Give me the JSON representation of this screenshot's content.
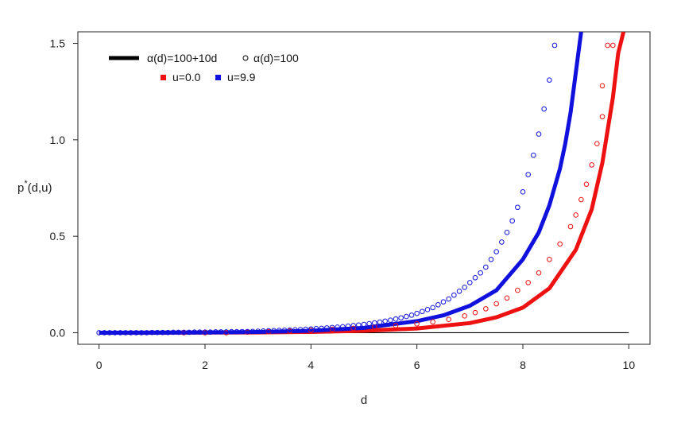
{
  "chart_data": {
    "type": "line",
    "xlabel": "d",
    "ylabel": "p*(d,u)",
    "ylabel_parts": {
      "base": "p",
      "sup": "*",
      "args": "(d,u)"
    },
    "xlim": [
      -0.4,
      10.4
    ],
    "ylim": [
      -0.06,
      1.56
    ],
    "x_ticks": [
      0,
      2,
      4,
      6,
      8,
      10
    ],
    "x_tick_labels": [
      "0",
      "2",
      "4",
      "6",
      "8",
      "10"
    ],
    "y_ticks": [
      0.0,
      0.5,
      1.0,
      1.5
    ],
    "y_tick_labels": [
      "0.0",
      "0.5",
      "1.0",
      "1.5"
    ],
    "grid": false,
    "legend": {
      "placement": "top-left",
      "rows": [
        [
          {
            "label": "α(d)=100+10d",
            "marker": "thick-line",
            "color": "#000000"
          },
          {
            "label": "α(d)=100",
            "marker": "open-circle",
            "color": "#000000"
          }
        ],
        [
          {
            "label": "u=0.0",
            "marker": "filled-square",
            "color": "#ee1111"
          },
          {
            "label": "u=9.9",
            "marker": "filled-square",
            "color": "#1111dd"
          }
        ]
      ]
    },
    "series": [
      {
        "name": "α(d)=100+10d, u=0.0",
        "style": "line",
        "color": "#ee1111",
        "x": [
          0,
          1,
          2,
          3,
          4,
          5,
          6,
          7,
          7.5,
          8,
          8.5,
          9,
          9.3,
          9.5,
          9.7,
          9.8,
          9.9
        ],
        "y": [
          0.0,
          0.0002,
          0.0006,
          0.0015,
          0.004,
          0.01,
          0.022,
          0.05,
          0.08,
          0.13,
          0.23,
          0.43,
          0.64,
          0.88,
          1.22,
          1.45,
          1.56
        ]
      },
      {
        "name": "α(d)=100+10d, u=9.9",
        "style": "line",
        "color": "#1111dd",
        "x": [
          0,
          1,
          2,
          3,
          4,
          5,
          6,
          6.5,
          7,
          7.5,
          8,
          8.3,
          8.5,
          8.7,
          8.8,
          8.9,
          9.0,
          9.1
        ],
        "y": [
          0.0,
          0.0005,
          0.0015,
          0.004,
          0.01,
          0.025,
          0.06,
          0.09,
          0.14,
          0.22,
          0.38,
          0.52,
          0.66,
          0.85,
          0.98,
          1.14,
          1.35,
          1.56
        ]
      },
      {
        "name": "α(d)=100, u=0.0",
        "style": "points",
        "color": "#ee1111",
        "x": [
          1.6,
          2.0,
          2.4,
          2.8,
          3.2,
          3.6,
          4.0,
          4.4,
          4.8,
          5.2,
          5.6,
          6.0,
          6.3,
          6.6,
          6.9,
          7.1,
          7.3,
          7.5,
          7.7,
          7.9,
          8.1,
          8.3,
          8.5,
          8.7,
          8.9,
          9.0,
          9.1,
          9.2,
          9.3,
          9.4,
          9.5
        ],
        "y": [
          0.0,
          0.0,
          0.0,
          0.003,
          0.006,
          0.009,
          0.013,
          0.018,
          0.023,
          0.03,
          0.037,
          0.046,
          0.056,
          0.069,
          0.087,
          0.104,
          0.124,
          0.15,
          0.18,
          0.22,
          0.26,
          0.31,
          0.38,
          0.46,
          0.55,
          0.61,
          0.69,
          0.77,
          0.87,
          0.98,
          1.12
        ]
      },
      {
        "name": "α(d)=100, u=0.0 (upper)",
        "style": "points",
        "color": "#ee1111",
        "x": [
          9.5,
          9.6,
          9.7
        ],
        "y": [
          1.28,
          1.49,
          1.49
        ]
      },
      {
        "name": "α(d)=100, u=9.9",
        "style": "points",
        "color": "#1111dd",
        "x": [
          0.0,
          0.1,
          0.2,
          0.3,
          0.4,
          0.5,
          0.6,
          0.7,
          0.8,
          0.9,
          1.0,
          1.1,
          1.2,
          1.3,
          1.4,
          1.5,
          1.6,
          1.7,
          1.8,
          1.9,
          2.0,
          2.1,
          2.2,
          2.3,
          2.4,
          2.5,
          2.6,
          2.7,
          2.8,
          2.9,
          3.0,
          3.1,
          3.2,
          3.3,
          3.4,
          3.5,
          3.6,
          3.7,
          3.8,
          3.9,
          4.0,
          4.1,
          4.2,
          4.3,
          4.4,
          4.5,
          4.6,
          4.7,
          4.8,
          4.9,
          5.0,
          5.1,
          5.2,
          5.3,
          5.4,
          5.5,
          5.6,
          5.7,
          5.8,
          5.9,
          6.0,
          6.1,
          6.2,
          6.3,
          6.4,
          6.5,
          6.6,
          6.7,
          6.8,
          6.9,
          7.0,
          7.1,
          7.2,
          7.3,
          7.4,
          7.5,
          7.6,
          7.7,
          7.8,
          7.9,
          8.0,
          8.1,
          8.2,
          8.3,
          8.4,
          8.5,
          8.6
        ],
        "y": [
          0.0,
          0.0,
          0.0,
          0.0,
          0.0,
          0.0,
          0.0,
          0.0,
          0.0,
          0.0,
          0.001,
          0.001,
          0.001,
          0.001,
          0.002,
          0.002,
          0.002,
          0.002,
          0.003,
          0.003,
          0.003,
          0.003,
          0.004,
          0.004,
          0.004,
          0.005,
          0.005,
          0.006,
          0.006,
          0.007,
          0.008,
          0.009,
          0.01,
          0.011,
          0.012,
          0.013,
          0.014,
          0.015,
          0.016,
          0.018,
          0.019,
          0.021,
          0.023,
          0.025,
          0.027,
          0.029,
          0.031,
          0.034,
          0.037,
          0.04,
          0.043,
          0.047,
          0.051,
          0.055,
          0.06,
          0.065,
          0.071,
          0.077,
          0.084,
          0.091,
          0.1,
          0.11,
          0.12,
          0.13,
          0.145,
          0.16,
          0.175,
          0.195,
          0.215,
          0.235,
          0.26,
          0.285,
          0.31,
          0.34,
          0.38,
          0.42,
          0.47,
          0.52,
          0.58,
          0.65,
          0.73,
          0.82,
          0.92,
          1.03,
          1.16,
          1.31,
          1.49
        ]
      },
      {
        "name": "α(d)=100+10d, u=0.0 (zero line)",
        "style": "thin-line",
        "color": "#000000",
        "x": [
          0,
          10
        ],
        "y": [
          0,
          0
        ]
      }
    ]
  }
}
